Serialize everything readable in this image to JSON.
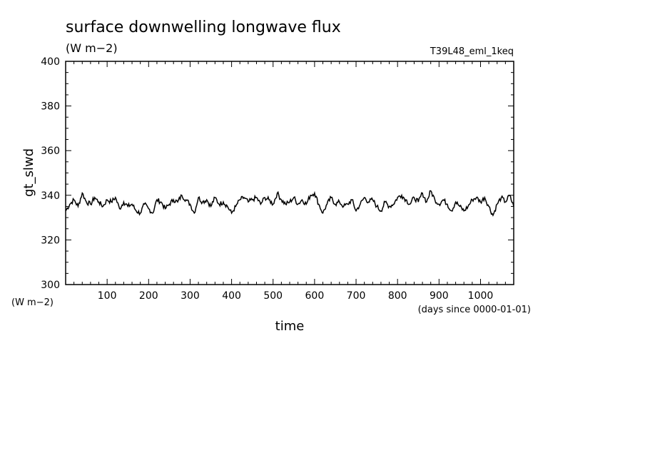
{
  "chart_data": {
    "type": "line",
    "title": "surface downwelling longwave flux",
    "title_units": "(W m−2)",
    "experiment": "T39L48_eml_1keq",
    "ylabel": "gt_slwd",
    "y_units": "(W m−2)",
    "xlabel": "time",
    "x_units": "(days since 0000-01-01)",
    "xlim": [
      0,
      1080
    ],
    "ylim": [
      300,
      400
    ],
    "x_ticks": [
      "100",
      "200",
      "300",
      "400",
      "500",
      "600",
      "700",
      "800",
      "900",
      "1000"
    ],
    "y_ticks": [
      "300",
      "320",
      "340",
      "360",
      "380",
      "400"
    ],
    "line_color": "#000000",
    "grid": false,
    "series": [
      {
        "x": [
          0,
          10,
          20,
          30,
          40,
          50,
          60,
          70,
          80,
          90,
          100,
          110,
          120,
          130,
          140,
          150,
          160,
          170,
          180,
          190,
          200,
          210,
          220,
          230,
          240,
          250,
          260,
          270,
          280,
          290,
          300,
          310,
          320,
          330,
          340,
          350,
          360,
          370,
          380,
          390,
          400,
          410,
          420,
          430,
          440,
          450,
          460,
          470,
          480,
          490,
          500,
          510,
          520,
          530,
          540,
          550,
          560,
          570,
          580,
          590,
          600,
          610,
          620,
          630,
          640,
          650,
          660,
          670,
          680,
          690,
          700,
          710,
          720,
          730,
          740,
          750,
          760,
          770,
          780,
          790,
          800,
          810,
          820,
          830,
          840,
          850,
          860,
          870,
          880,
          890,
          900,
          910,
          920,
          930,
          940,
          950,
          960,
          970,
          980,
          990,
          1000,
          1010,
          1020,
          1030,
          1040,
          1050,
          1060,
          1070,
          1080
        ],
        "values": [
          333,
          336,
          338,
          335,
          341,
          337,
          336,
          339,
          337,
          335,
          338,
          337,
          339,
          334,
          337,
          335,
          336,
          333,
          332,
          336,
          334,
          332,
          338,
          337,
          334,
          336,
          338,
          337,
          340,
          338,
          336,
          332,
          339,
          337,
          338,
          335,
          339,
          336,
          337,
          335,
          332,
          335,
          338,
          339,
          337,
          338,
          339,
          336,
          339,
          338,
          336,
          341,
          338,
          336,
          337,
          339,
          336,
          338,
          336,
          340,
          341,
          336,
          332,
          336,
          339,
          336,
          337,
          335,
          336,
          338,
          333,
          336,
          339,
          337,
          338,
          335,
          333,
          337,
          335,
          336,
          339,
          340,
          338,
          336,
          339,
          337,
          341,
          337,
          342,
          338,
          336,
          338,
          336,
          333,
          337,
          335,
          333,
          335,
          338,
          339,
          337,
          339,
          335,
          331,
          336,
          339,
          337,
          340,
          335
        ]
      }
    ]
  }
}
